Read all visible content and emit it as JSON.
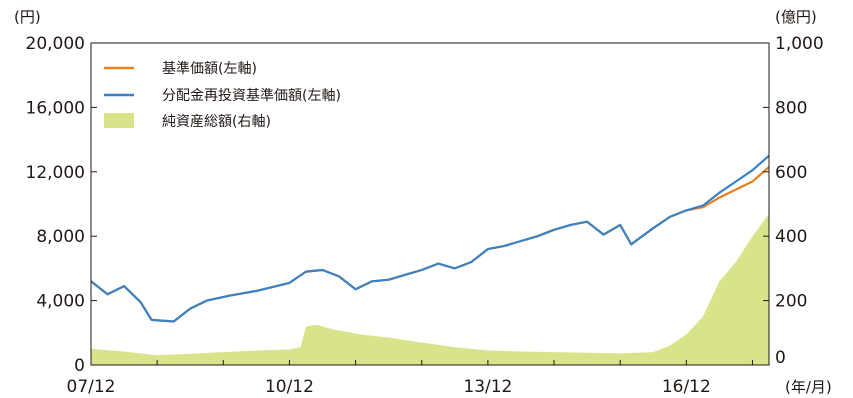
{
  "chart_data": {
    "type": "line",
    "title": "",
    "left_axis": {
      "unit": "(円)",
      "ticks": [
        "20,000",
        "16,000",
        "12,000",
        "8,000",
        "4,000",
        "0"
      ],
      "range": [
        0,
        20000
      ]
    },
    "right_axis": {
      "unit": "(億円)",
      "ticks": [
        "1,000",
        "800",
        "600",
        "400",
        "200",
        "0"
      ],
      "range": [
        0,
        1000
      ]
    },
    "x_axis": {
      "unit": "(年/月)",
      "ticks": [
        "07/12",
        "10/12",
        "13/12",
        "16/12"
      ],
      "range": [
        "2007-12",
        "2018-03"
      ]
    },
    "legend_position": "top-left",
    "series": [
      {
        "name": "基準価額(左軸)",
        "color": "#e8821e",
        "axis": "left",
        "kind": "line",
        "points": [
          [
            "2007-12",
            5200
          ],
          [
            "2008-03",
            4400
          ],
          [
            "2008-06",
            4900
          ],
          [
            "2008-09",
            3900
          ],
          [
            "2008-11",
            2800
          ],
          [
            "2009-03",
            2700
          ],
          [
            "2009-06",
            3500
          ],
          [
            "2009-09",
            4000
          ],
          [
            "2010-01",
            4300
          ],
          [
            "2010-06",
            4600
          ],
          [
            "2010-12",
            5100
          ],
          [
            "2011-03",
            5800
          ],
          [
            "2011-06",
            5900
          ],
          [
            "2011-09",
            5500
          ],
          [
            "2011-12",
            4700
          ],
          [
            "2012-03",
            5200
          ],
          [
            "2012-06",
            5300
          ],
          [
            "2012-09",
            5600
          ],
          [
            "2012-12",
            5900
          ],
          [
            "2013-03",
            6300
          ],
          [
            "2013-06",
            6000
          ],
          [
            "2013-09",
            6400
          ],
          [
            "2013-12",
            7200
          ],
          [
            "2014-03",
            7400
          ],
          [
            "2014-06",
            7700
          ],
          [
            "2014-09",
            8000
          ],
          [
            "2014-12",
            8400
          ],
          [
            "2015-03",
            8700
          ],
          [
            "2015-06",
            8900
          ],
          [
            "2015-09",
            8100
          ],
          [
            "2015-12",
            8700
          ],
          [
            "2016-02",
            7500
          ],
          [
            "2016-06",
            8500
          ],
          [
            "2016-09",
            9200
          ],
          [
            "2016-12",
            9600
          ],
          [
            "2017-03",
            9800
          ],
          [
            "2017-06",
            10400
          ],
          [
            "2017-09",
            10900
          ],
          [
            "2017-12",
            11400
          ],
          [
            "2018-03",
            12300
          ]
        ]
      },
      {
        "name": "分配金再投資基準価額(左軸)",
        "color": "#3b82c4",
        "axis": "left",
        "kind": "line",
        "points": [
          [
            "2007-12",
            5200
          ],
          [
            "2008-03",
            4400
          ],
          [
            "2008-06",
            4900
          ],
          [
            "2008-09",
            3900
          ],
          [
            "2008-11",
            2800
          ],
          [
            "2009-03",
            2700
          ],
          [
            "2009-06",
            3500
          ],
          [
            "2009-09",
            4000
          ],
          [
            "2010-01",
            4300
          ],
          [
            "2010-06",
            4600
          ],
          [
            "2010-12",
            5100
          ],
          [
            "2011-03",
            5800
          ],
          [
            "2011-06",
            5900
          ],
          [
            "2011-09",
            5500
          ],
          [
            "2011-12",
            4700
          ],
          [
            "2012-03",
            5200
          ],
          [
            "2012-06",
            5300
          ],
          [
            "2012-09",
            5600
          ],
          [
            "2012-12",
            5900
          ],
          [
            "2013-03",
            6300
          ],
          [
            "2013-06",
            6000
          ],
          [
            "2013-09",
            6400
          ],
          [
            "2013-12",
            7200
          ],
          [
            "2014-03",
            7400
          ],
          [
            "2014-06",
            7700
          ],
          [
            "2014-09",
            8000
          ],
          [
            "2014-12",
            8400
          ],
          [
            "2015-03",
            8700
          ],
          [
            "2015-06",
            8900
          ],
          [
            "2015-09",
            8100
          ],
          [
            "2015-12",
            8700
          ],
          [
            "2016-02",
            7500
          ],
          [
            "2016-06",
            8500
          ],
          [
            "2016-09",
            9200
          ],
          [
            "2016-12",
            9600
          ],
          [
            "2017-03",
            9900
          ],
          [
            "2017-06",
            10700
          ],
          [
            "2017-09",
            11400
          ],
          [
            "2017-12",
            12100
          ],
          [
            "2018-03",
            13000
          ]
        ]
      },
      {
        "name": "純資産総額(右軸)",
        "color": "#d9e38a",
        "axis": "right",
        "kind": "area",
        "points": [
          [
            "2007-12",
            50
          ],
          [
            "2008-06",
            42
          ],
          [
            "2008-12",
            30
          ],
          [
            "2009-06",
            35
          ],
          [
            "2009-12",
            40
          ],
          [
            "2010-06",
            45
          ],
          [
            "2010-12",
            48
          ],
          [
            "2011-02",
            55
          ],
          [
            "2011-03",
            120
          ],
          [
            "2011-05",
            125
          ],
          [
            "2011-08",
            110
          ],
          [
            "2012-01",
            95
          ],
          [
            "2012-06",
            85
          ],
          [
            "2012-12",
            70
          ],
          [
            "2013-06",
            55
          ],
          [
            "2013-12",
            45
          ],
          [
            "2014-06",
            42
          ],
          [
            "2014-12",
            40
          ],
          [
            "2015-06",
            38
          ],
          [
            "2015-12",
            36
          ],
          [
            "2016-06",
            40
          ],
          [
            "2016-09",
            60
          ],
          [
            "2016-12",
            95
          ],
          [
            "2017-03",
            150
          ],
          [
            "2017-06",
            260
          ],
          [
            "2017-09",
            320
          ],
          [
            "2017-12",
            400
          ],
          [
            "2018-03",
            470
          ]
        ]
      }
    ]
  }
}
